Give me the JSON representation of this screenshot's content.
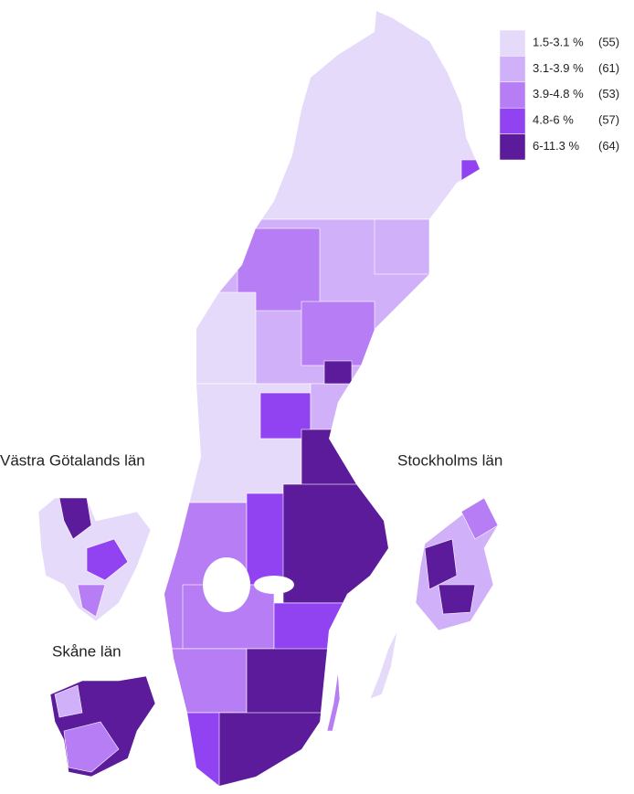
{
  "legend": {
    "items": [
      {
        "label": "1.5-3.1 %",
        "count": {
          "value": 55,
          "label": "(55)"
        },
        "color": "#e6dafb"
      },
      {
        "label": "3.1-3.9 %",
        "count": {
          "value": 61,
          "label": "(61)"
        },
        "color": "#d0b0f8"
      },
      {
        "label": "3.9-4.8 %",
        "count": {
          "value": 53,
          "label": "(53)"
        },
        "color": "#b67df5"
      },
      {
        "label": "4.8-6 %",
        "count": {
          "value": 57,
          "label": "(57)"
        },
        "color": "#9143f2"
      },
      {
        "label": "6-11.3 %",
        "count": {
          "value": 64,
          "label": "(64)"
        },
        "color": "#5b1b9b"
      }
    ]
  },
  "insets": [
    {
      "title": "Västra Götalands län"
    },
    {
      "title": "Stockholms län"
    },
    {
      "title": "Skåne län"
    }
  ]
}
